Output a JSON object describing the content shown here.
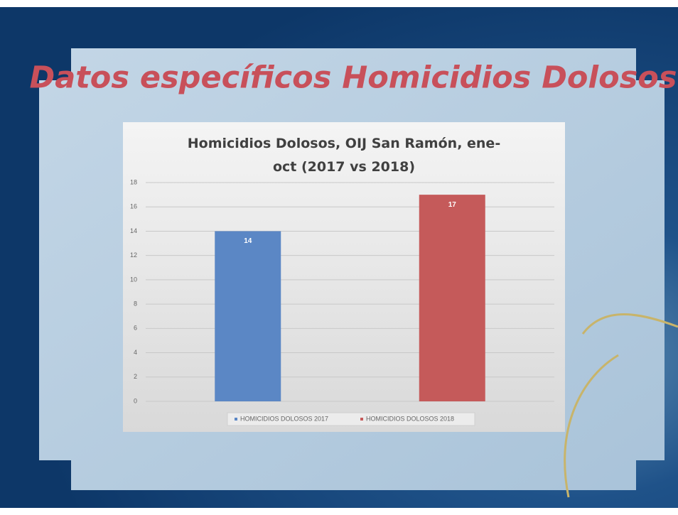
{
  "heading": "Datos específicos Homicidios Dolosos",
  "chart_data": {
    "type": "bar",
    "title": "Homicidios Dolosos, OIJ San Ramón, ene-oct (2017 vs 2018)",
    "categories": [
      null
    ],
    "series": [
      {
        "name": "HOMICIDIOS DOLOSOS 2017",
        "color": "#5b87c5",
        "values": [
          14
        ]
      },
      {
        "name": "HOMICIDIOS DOLOSOS 2018",
        "color": "#c55a5a",
        "values": [
          17
        ]
      }
    ],
    "ylim": [
      0,
      18
    ],
    "yticks": [
      0,
      2,
      4,
      6,
      8,
      10,
      12,
      14,
      16,
      18
    ],
    "grid": true,
    "legend": "bottom"
  }
}
